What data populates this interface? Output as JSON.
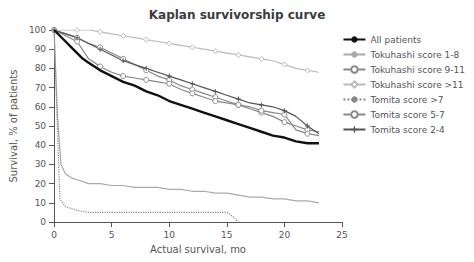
{
  "chart_data": {
    "type": "line",
    "title": "Kaplan survivorship curve",
    "xlabel": "Actual survival, mo",
    "ylabel": "Survival, % of patients",
    "xlim": [
      0,
      25
    ],
    "ylim": [
      0,
      100
    ],
    "xticks": [
      0,
      5,
      10,
      15,
      20,
      25
    ],
    "yticks": [
      0,
      10,
      20,
      30,
      40,
      50,
      60,
      70,
      80,
      90,
      100
    ],
    "grid": false,
    "legend": "right",
    "series": [
      {
        "name": "All patients",
        "color": "#111111",
        "line_style": "solid",
        "x": [
          0,
          0.5,
          1,
          1.5,
          2,
          2.5,
          3,
          3.5,
          4,
          5,
          6,
          7,
          8,
          9,
          10,
          11,
          12,
          13,
          14,
          15,
          16,
          17,
          18,
          19,
          20,
          21,
          22,
          23
        ],
        "values": [
          100,
          97,
          94,
          91,
          88,
          85,
          83,
          81,
          79,
          76,
          73,
          71,
          68,
          66,
          63,
          61,
          59,
          57,
          55,
          53,
          51,
          49,
          47,
          45,
          44,
          42,
          41,
          41
        ]
      },
      {
        "name": "Tokuhashi score 1-8",
        "color": "#aaaaaa",
        "line_style": "solid",
        "x": [
          0,
          0.3,
          0.6,
          1,
          1.5,
          2,
          2.5,
          3,
          4,
          5,
          6,
          7,
          8,
          9,
          10,
          11,
          12,
          13,
          14,
          15,
          16,
          17,
          18,
          19,
          20,
          21,
          22,
          23
        ],
        "values": [
          100,
          55,
          30,
          25,
          23,
          22,
          21,
          20,
          20,
          19,
          19,
          18,
          18,
          18,
          17,
          17,
          16,
          16,
          15,
          15,
          14,
          13,
          13,
          12,
          12,
          11,
          11,
          10
        ]
      },
      {
        "name": "Tokuhashi score 9-11",
        "color": "#888888",
        "line_style": "solid",
        "marker": "circle",
        "x": [
          0,
          1,
          2,
          3,
          4,
          5,
          6,
          7,
          8,
          9,
          10,
          11,
          12,
          13,
          14,
          15,
          16,
          17,
          18,
          19,
          20,
          21,
          22,
          23
        ],
        "values": [
          100,
          98,
          96,
          93,
          91,
          88,
          85,
          82,
          79,
          76,
          74,
          71,
          69,
          67,
          65,
          63,
          61,
          59,
          57,
          55,
          52,
          50,
          48,
          47
        ]
      },
      {
        "name": "Tokuhashi score >11",
        "color": "#bbbbbb",
        "line_style": "solid",
        "marker": "diamond",
        "x": [
          0,
          1,
          2,
          3,
          4,
          5,
          6,
          7,
          8,
          9,
          10,
          11,
          12,
          13,
          14,
          15,
          16,
          17,
          18,
          19,
          20,
          21,
          22,
          23
        ],
        "values": [
          100,
          100,
          100,
          100,
          99,
          98,
          97,
          96,
          95,
          94,
          93,
          92,
          91,
          90,
          89,
          88,
          87,
          86,
          85,
          84,
          82,
          80,
          79,
          78
        ]
      },
      {
        "name": "Tomita score >7",
        "color": "#888888",
        "line_style": "dotted",
        "x": [
          0,
          0.5,
          1,
          2,
          3,
          4,
          5,
          6,
          7,
          8,
          9,
          10,
          11,
          12,
          13,
          14,
          15,
          15.5,
          16
        ],
        "values": [
          100,
          12,
          8,
          6,
          5,
          5,
          5,
          5,
          5,
          5,
          5,
          5,
          5,
          5,
          5,
          5,
          5,
          3,
          0
        ]
      },
      {
        "name": "Tomita score 5-7",
        "color": "#888888",
        "line_style": "solid",
        "marker": "circle",
        "x": [
          0,
          1,
          2,
          3,
          4,
          5,
          6,
          7,
          8,
          9,
          10,
          11,
          12,
          13,
          14,
          15,
          16,
          17,
          18,
          19,
          20,
          21,
          22,
          23
        ],
        "values": [
          100,
          97,
          94,
          85,
          81,
          78,
          76,
          75,
          74,
          73,
          72,
          69,
          67,
          65,
          63,
          62,
          61,
          60,
          58,
          57,
          56,
          48,
          46,
          45
        ]
      },
      {
        "name": "Tomita score 2-4",
        "color": "#555555",
        "line_style": "solid",
        "marker": "plus",
        "x": [
          0,
          1,
          2,
          3,
          4,
          5,
          6,
          7,
          8,
          9,
          10,
          11,
          12,
          13,
          14,
          15,
          16,
          17,
          18,
          19,
          20,
          21,
          22,
          23
        ],
        "values": [
          100,
          98,
          96,
          93,
          90,
          87,
          84,
          82,
          80,
          78,
          76,
          74,
          72,
          70,
          68,
          66,
          64,
          62,
          61,
          60,
          58,
          55,
          50,
          46
        ]
      }
    ]
  }
}
